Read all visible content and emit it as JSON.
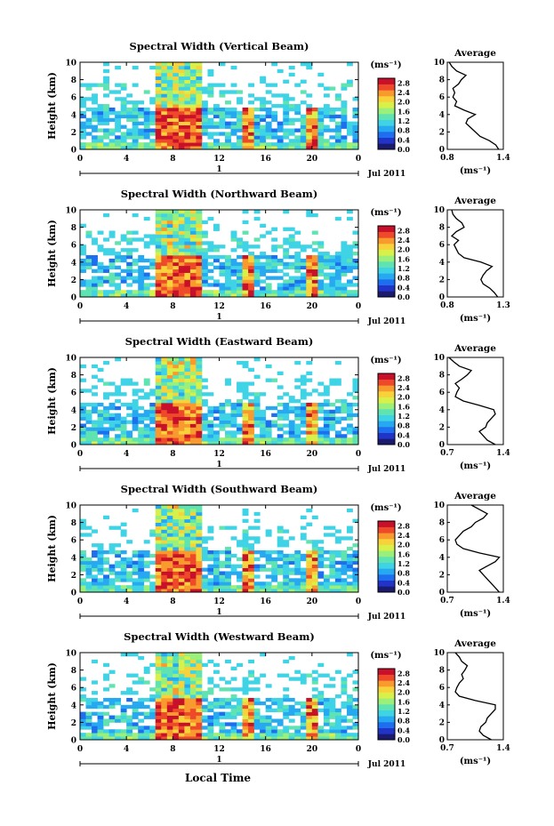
{
  "figure": {
    "x_axis_title": "Local Time",
    "date_label": "Jul 2011",
    "day_label": "1",
    "colorbar_unit": "(ms⁻¹)",
    "avg_title": "Average",
    "avg_unit": "(ms⁻¹)"
  },
  "chart_data": [
    {
      "type": "heatmap",
      "title": "Spectral Width (Vertical Beam)",
      "ylabel": "Height (km)",
      "xticks": [
        "0",
        "4",
        "8",
        "12",
        "16",
        "20",
        "0"
      ],
      "yticks": [
        "0",
        "2",
        "4",
        "6",
        "8",
        "10"
      ],
      "xlim": [
        0,
        24
      ],
      "ylim": [
        0,
        10
      ],
      "colorbar_ticks": [
        "0.0",
        "0.4",
        "0.8",
        "1.2",
        "1.6",
        "2.0",
        "2.4",
        "2.8"
      ],
      "avg_xticks": [
        "0.8",
        "1.4"
      ],
      "avg_xlim": [
        0.8,
        1.4
      ],
      "avg_profile": {
        "height": [
          0,
          0.5,
          1,
          1.5,
          2,
          2.5,
          3,
          3.5,
          4,
          4.5,
          5,
          5.5,
          6,
          6.5,
          7,
          7.5,
          8,
          8.5,
          9,
          9.5,
          10
        ],
        "value": [
          1.35,
          1.32,
          1.25,
          1.15,
          1.1,
          1.05,
          1.0,
          1.02,
          1.1,
          0.98,
          0.88,
          0.9,
          0.86,
          0.88,
          0.86,
          0.92,
          0.95,
          1.0,
          0.9,
          0.85,
          0.82
        ]
      }
    },
    {
      "type": "heatmap",
      "title": "Spectral Width (Northward Beam)",
      "ylabel": "Height (km)",
      "xticks": [
        "0",
        "4",
        "8",
        "12",
        "16",
        "20",
        "0"
      ],
      "yticks": [
        "0",
        "2",
        "4",
        "6",
        "8",
        "10"
      ],
      "xlim": [
        0,
        24
      ],
      "ylim": [
        0,
        10
      ],
      "colorbar_ticks": [
        "0.0",
        "0.4",
        "0.8",
        "1.2",
        "1.6",
        "2.0",
        "2.4",
        "2.8"
      ],
      "avg_xticks": [
        "0.8",
        "1.3"
      ],
      "avg_xlim": [
        0.8,
        1.3
      ],
      "avg_profile": {
        "height": [
          0,
          0.5,
          1,
          1.5,
          2,
          2.5,
          3,
          3.5,
          4,
          4.5,
          5,
          5.5,
          6,
          6.5,
          7,
          7.5,
          8,
          8.5,
          9,
          9.5,
          10
        ],
        "value": [
          1.25,
          1.22,
          1.18,
          1.12,
          1.1,
          1.12,
          1.15,
          1.2,
          1.1,
          0.95,
          0.9,
          0.88,
          0.86,
          0.9,
          0.84,
          0.88,
          0.95,
          0.93,
          0.88,
          0.85,
          0.84
        ]
      }
    },
    {
      "type": "heatmap",
      "title": "Spectral Width (Eastward Beam)",
      "ylabel": "Height (km)",
      "xticks": [
        "0",
        "4",
        "8",
        "12",
        "16",
        "20",
        "0"
      ],
      "yticks": [
        "0",
        "2",
        "4",
        "6",
        "8",
        "10"
      ],
      "xlim": [
        0,
        24
      ],
      "ylim": [
        0,
        10
      ],
      "colorbar_ticks": [
        "0.0",
        "0.4",
        "0.8",
        "1.2",
        "1.6",
        "2.0",
        "2.4",
        "2.8"
      ],
      "avg_xticks": [
        "0.7",
        "1.4"
      ],
      "avg_xlim": [
        0.7,
        1.4
      ],
      "avg_profile": {
        "height": [
          0,
          0.5,
          1,
          1.5,
          2,
          2.5,
          3,
          3.5,
          4,
          4.5,
          5,
          5.5,
          6,
          6.5,
          7,
          7.5,
          8,
          8.5,
          9,
          9.5,
          10
        ],
        "value": [
          1.3,
          1.2,
          1.15,
          1.1,
          1.18,
          1.2,
          1.25,
          1.3,
          1.28,
          1.1,
          0.9,
          0.8,
          0.82,
          0.85,
          0.8,
          0.88,
          0.95,
          1.0,
          0.85,
          0.78,
          0.72
        ]
      }
    },
    {
      "type": "heatmap",
      "title": "Spectral Width (Southward Beam)",
      "ylabel": "Height (km)",
      "xticks": [
        "0",
        "4",
        "8",
        "12",
        "16",
        "20",
        "0"
      ],
      "yticks": [
        "0",
        "2",
        "4",
        "6",
        "8",
        "10"
      ],
      "xlim": [
        0,
        24
      ],
      "ylim": [
        0,
        10
      ],
      "colorbar_ticks": [
        "0.0",
        "0.4",
        "0.8",
        "1.2",
        "1.6",
        "2.0",
        "2.4",
        "2.8"
      ],
      "avg_xticks": [
        "0.7",
        "1.4"
      ],
      "avg_xlim": [
        0.7,
        1.4
      ],
      "avg_profile": {
        "height": [
          0,
          0.5,
          1,
          1.5,
          2,
          2.5,
          3,
          3.5,
          4,
          4.5,
          5,
          5.5,
          6,
          6.5,
          7,
          7.5,
          8,
          8.5,
          9,
          9.5,
          10
        ],
        "value": [
          1.35,
          1.3,
          1.25,
          1.2,
          1.15,
          1.1,
          1.2,
          1.3,
          1.35,
          1.1,
          0.9,
          0.82,
          0.8,
          0.85,
          0.9,
          1.0,
          1.05,
          1.15,
          1.2,
          1.1,
          1.0
        ]
      }
    },
    {
      "type": "heatmap",
      "title": "Spectral Width (Westward Beam)",
      "ylabel": "Height (km)",
      "xticks": [
        "0",
        "4",
        "8",
        "12",
        "16",
        "20",
        "0"
      ],
      "yticks": [
        "0",
        "2",
        "4",
        "6",
        "8",
        "10"
      ],
      "xlim": [
        0,
        24
      ],
      "ylim": [
        0,
        10
      ],
      "colorbar_ticks": [
        "0.0",
        "0.4",
        "0.8",
        "1.2",
        "1.6",
        "2.0",
        "2.4",
        "2.8"
      ],
      "avg_xticks": [
        "0.7",
        "1.4"
      ],
      "avg_xlim": [
        0.7,
        1.4
      ],
      "avg_profile": {
        "height": [
          0,
          0.5,
          1,
          1.5,
          2,
          2.5,
          3,
          3.5,
          4,
          4.5,
          5,
          5.5,
          6,
          6.5,
          7,
          7.5,
          8,
          8.5,
          9,
          9.5,
          10
        ],
        "value": [
          1.25,
          1.15,
          1.1,
          1.12,
          1.18,
          1.2,
          1.25,
          1.3,
          1.3,
          1.05,
          0.85,
          0.8,
          0.82,
          0.85,
          0.9,
          0.88,
          0.92,
          0.95,
          0.88,
          0.85,
          0.8
        ]
      }
    }
  ]
}
